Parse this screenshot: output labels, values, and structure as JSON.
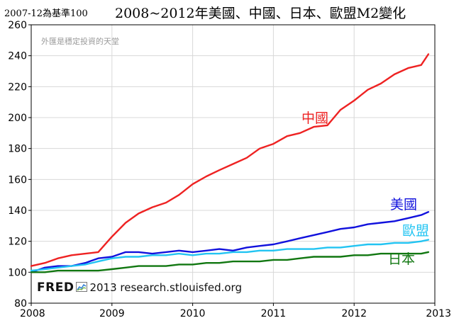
{
  "title": {
    "baseline_note": "2007-12為基準100",
    "main": "2008~2012年美國、中國、日本、歐盟M2變化"
  },
  "watermark": "外匯是穩定投資的天堂",
  "credit": {
    "brand": "FRED",
    "text": "2013 research.stlouisfed.org"
  },
  "colors": {
    "China": "#ee2222",
    "USA": "#1111dd",
    "EU": "#22c4f2",
    "Japan": "#117711",
    "grid": "#d8d8d8",
    "axis": "#000000"
  },
  "chart_data": {
    "type": "line",
    "title": "2008~2012年美國、中國、日本、歐盟M2變化",
    "xlabel": "",
    "ylabel": "",
    "xlim": [
      2008,
      2013
    ],
    "ylim": [
      80,
      260
    ],
    "x_ticks": [
      "2008",
      "2009",
      "2010",
      "2011",
      "2012",
      "2013"
    ],
    "y_ticks": [
      "80",
      "100",
      "120",
      "140",
      "160",
      "180",
      "200",
      "220",
      "240",
      "260"
    ],
    "grid": true,
    "series": [
      {
        "name": "中國",
        "color_key": "China",
        "label_position": "above-line",
        "x": [
          2008.0,
          2008.17,
          2008.33,
          2008.5,
          2008.67,
          2008.83,
          2009.0,
          2009.17,
          2009.33,
          2009.5,
          2009.67,
          2009.83,
          2010.0,
          2010.17,
          2010.33,
          2010.5,
          2010.67,
          2010.83,
          2011.0,
          2011.17,
          2011.33,
          2011.5,
          2011.67,
          2011.83,
          2012.0,
          2012.17,
          2012.33,
          2012.5,
          2012.67,
          2012.83,
          2012.92
        ],
        "values": [
          104,
          106,
          109,
          111,
          112,
          113,
          123,
          132,
          138,
          142,
          145,
          150,
          157,
          162,
          166,
          170,
          174,
          180,
          183,
          188,
          190,
          194,
          195,
          205,
          211,
          218,
          222,
          228,
          232,
          234,
          241
        ]
      },
      {
        "name": "美國",
        "color_key": "USA",
        "label_position": "above-line",
        "x": [
          2008.0,
          2008.17,
          2008.33,
          2008.5,
          2008.67,
          2008.83,
          2009.0,
          2009.17,
          2009.33,
          2009.5,
          2009.67,
          2009.83,
          2010.0,
          2010.17,
          2010.33,
          2010.5,
          2010.67,
          2010.83,
          2011.0,
          2011.17,
          2011.33,
          2011.5,
          2011.67,
          2011.83,
          2012.0,
          2012.17,
          2012.33,
          2012.5,
          2012.67,
          2012.83,
          2012.92
        ],
        "values": [
          100,
          103,
          104,
          104,
          106,
          109,
          110,
          113,
          113,
          112,
          113,
          114,
          113,
          114,
          115,
          114,
          116,
          117,
          118,
          120,
          122,
          124,
          126,
          128,
          129,
          131,
          132,
          133,
          135,
          137,
          139
        ]
      },
      {
        "name": "歐盟",
        "color_key": "EU",
        "label_position": "right",
        "x": [
          2008.0,
          2008.17,
          2008.33,
          2008.5,
          2008.67,
          2008.83,
          2009.0,
          2009.17,
          2009.33,
          2009.5,
          2009.67,
          2009.83,
          2010.0,
          2010.17,
          2010.33,
          2010.5,
          2010.67,
          2010.83,
          2011.0,
          2011.17,
          2011.33,
          2011.5,
          2011.67,
          2011.83,
          2012.0,
          2012.17,
          2012.33,
          2012.5,
          2012.67,
          2012.83,
          2012.92
        ],
        "values": [
          101,
          102,
          103,
          104,
          105,
          107,
          109,
          110,
          110,
          111,
          111,
          112,
          111,
          112,
          112,
          113,
          113,
          114,
          114,
          115,
          115,
          115,
          116,
          116,
          117,
          118,
          118,
          119,
          119,
          120,
          121
        ]
      },
      {
        "name": "日本",
        "color_key": "Japan",
        "label_position": "below-line",
        "x": [
          2008.0,
          2008.17,
          2008.33,
          2008.5,
          2008.67,
          2008.83,
          2009.0,
          2009.17,
          2009.33,
          2009.5,
          2009.67,
          2009.83,
          2010.0,
          2010.17,
          2010.33,
          2010.5,
          2010.67,
          2010.83,
          2011.0,
          2011.17,
          2011.33,
          2011.5,
          2011.67,
          2011.83,
          2012.0,
          2012.17,
          2012.33,
          2012.5,
          2012.67,
          2012.83,
          2012.92
        ],
        "values": [
          100,
          100,
          101,
          101,
          101,
          101,
          102,
          103,
          104,
          104,
          104,
          105,
          105,
          106,
          106,
          107,
          107,
          107,
          108,
          108,
          109,
          110,
          110,
          110,
          111,
          111,
          112,
          112,
          112,
          112,
          113
        ]
      }
    ]
  }
}
